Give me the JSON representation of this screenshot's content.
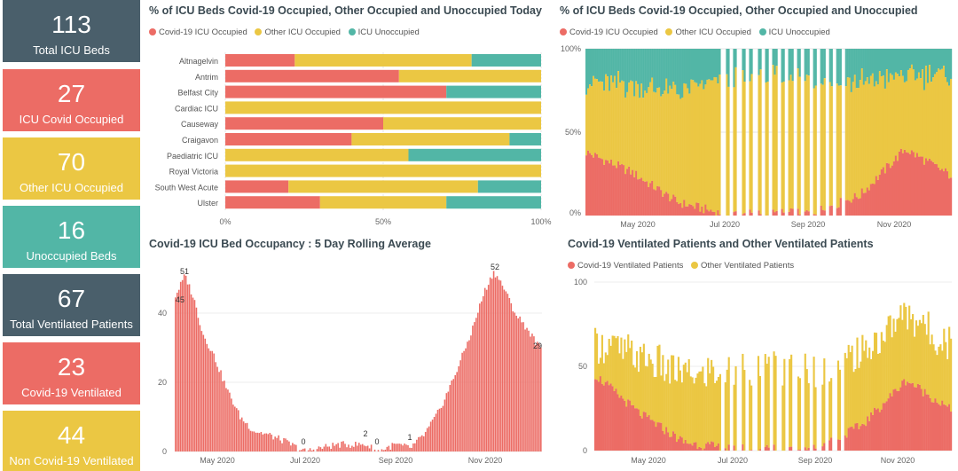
{
  "colors": {
    "slate": "#4a5f6b",
    "red": "#ec6c65",
    "yellow": "#ebc743",
    "teal": "#52b6a6"
  },
  "cards": [
    {
      "value": "113",
      "label": "Total ICU Beds",
      "color": "#4a5f6b"
    },
    {
      "value": "27",
      "label": "ICU Covid Occupied",
      "color": "#ec6c65"
    },
    {
      "value": "70",
      "label": "Other ICU Occupied",
      "color": "#ebc743"
    },
    {
      "value": "16",
      "label": "Unoccupied Beds",
      "color": "#52b6a6"
    },
    {
      "value": "67",
      "label": "Total Ventilated Patients",
      "color": "#4a5f6b"
    },
    {
      "value": "23",
      "label": "Covid-19 Ventilated",
      "color": "#ec6c65"
    },
    {
      "value": "44",
      "label": "Non Covid-19 Ventilated",
      "color": "#ebc743"
    }
  ],
  "chart_data": [
    {
      "type": "bar",
      "orientation": "horizontal",
      "stacked": "100%",
      "title": "% of ICU Beds Covid-19 Occupied, Other Occupied and Unoccupied Today",
      "legend": [
        "Covid-19 ICU Occupied",
        "Other ICU Occupied",
        "ICU Unoccupied"
      ],
      "legend_position": "top-left",
      "categories": [
        "Altnagelvin",
        "Antrim",
        "Belfast City",
        "Cardiac ICU",
        "Causeway",
        "Craigavon",
        "Paediatric ICU",
        "Royal Victoria",
        "South West Acute",
        "Ulster"
      ],
      "series": [
        {
          "name": "Covid-19 ICU Occupied",
          "values": [
            22,
            55,
            70,
            0,
            50,
            40,
            0,
            0,
            20,
            30
          ]
        },
        {
          "name": "Other ICU Occupied",
          "values": [
            56,
            45,
            0,
            100,
            50,
            50,
            58,
            100,
            60,
            40
          ]
        },
        {
          "name": "ICU Unoccupied",
          "values": [
            22,
            0,
            30,
            0,
            0,
            10,
            42,
            0,
            20,
            30
          ]
        }
      ],
      "x_ticks": [
        "0%",
        "50%",
        "100%"
      ],
      "xlim": [
        0,
        100
      ]
    },
    {
      "type": "bar",
      "stacked": "100%",
      "title": "% of ICU Beds Covid-19 Occupied, Other Occupied and Unoccupied",
      "legend": [
        "Covid-19 ICU Occupied",
        "Other ICU Occupied",
        "ICU Unoccupied"
      ],
      "legend_position": "top-left",
      "x_ticks": [
        "May 2020",
        "Jul 2020",
        "Sep 2020",
        "Nov 2020"
      ],
      "y_ticks": [
        "0%",
        "50%",
        "100%"
      ],
      "keypoints": {
        "x": [
          "Apr 2020",
          "May 2020",
          "Jun 2020",
          "Jul 2020",
          "Aug 2020",
          "Sep 2020",
          "Oct 2020",
          "Nov 2020",
          "Dec 2020"
        ],
        "covid_pct": [
          38,
          26,
          8,
          1,
          1,
          2,
          12,
          40,
          24
        ],
        "other_pct": [
          42,
          52,
          66,
          80,
          82,
          80,
          68,
          44,
          60
        ]
      },
      "gaps": "Jul 2020 – Sep 2020 (alternate missing days)"
    },
    {
      "type": "bar",
      "title": "Covid-19 ICU Bed Occupancy : 5 Day Rolling Average",
      "ylim": [
        0,
        55
      ],
      "y_ticks": [
        0,
        20,
        40
      ],
      "x_ticks": [
        "May 2020",
        "Jul 2020",
        "Sep 2020",
        "Nov 2020"
      ],
      "data_labels": [
        "45",
        "51",
        "0",
        "2",
        "0",
        "1",
        "52",
        "29"
      ],
      "keypoints": {
        "x": [
          "Apr 2020",
          "Apr 2020",
          "May 2020",
          "Jun 2020",
          "Jul 2020",
          "Aug 2020",
          "Sep 2020",
          "Sep 2020",
          "Oct 2020",
          "Nov 2020",
          "Dec 2020"
        ],
        "y": [
          45,
          51,
          34,
          7,
          0,
          2,
          0,
          1,
          20,
          52,
          29
        ]
      }
    },
    {
      "type": "bar",
      "stacked": true,
      "title": "Covid-19 Ventilated Patients and Other Ventilated Patients",
      "legend": [
        "Covid-19 Ventilated Patients",
        "Other Ventilated Patients"
      ],
      "legend_position": "top-left",
      "ylim": [
        0,
        100
      ],
      "y_ticks": [
        0,
        50,
        100
      ],
      "x_ticks": [
        "May 2020",
        "Jul 2020",
        "Sep 2020",
        "Nov 2020"
      ],
      "keypoints": {
        "x": [
          "Apr 2020",
          "May 2020",
          "Jun 2020",
          "Jul 2020",
          "Aug 2020",
          "Sep 2020",
          "Oct 2020",
          "Nov 2020",
          "Dec 2020"
        ],
        "covid": [
          45,
          22,
          5,
          1,
          1,
          2,
          15,
          42,
          24
        ],
        "other": [
          20,
          32,
          40,
          45,
          48,
          46,
          42,
          40,
          38
        ]
      }
    }
  ]
}
